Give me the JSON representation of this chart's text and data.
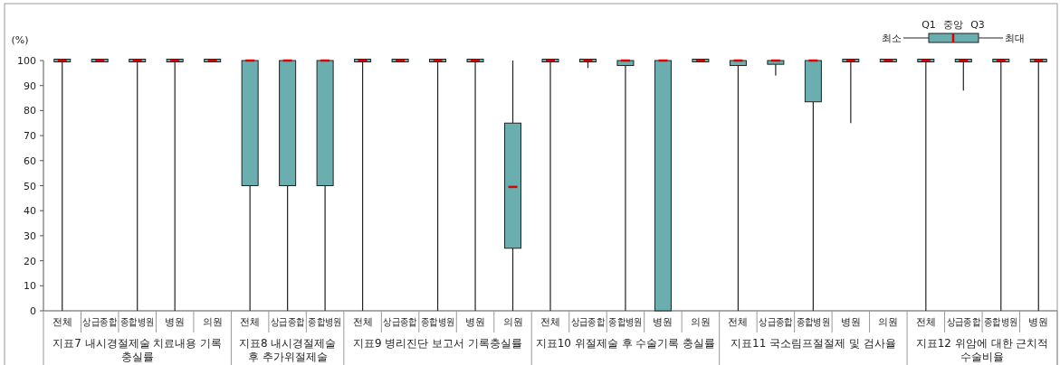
{
  "chart_data": {
    "type": "box",
    "ylabel": "(%)",
    "ylim": [
      0,
      100
    ],
    "yticks": [
      0,
      10,
      20,
      30,
      40,
      50,
      60,
      70,
      80,
      90,
      100
    ],
    "categories": [
      "전체",
      "상급종합",
      "종합병원",
      "병원",
      "의원",
      "전체",
      "상급종합",
      "종합병원",
      "전체",
      "상급종합",
      "종합병원",
      "병원",
      "의원",
      "전체",
      "상급종합",
      "종합병원",
      "병원",
      "의원",
      "전체",
      "상급종합",
      "종합병원",
      "병원",
      "의원",
      "전체",
      "상급종합",
      "종합병원",
      "병원"
    ],
    "series": [
      {
        "color": "#6aaeb0",
        "boxes": [
          {
            "low": 0,
            "q1": 100,
            "median": 100,
            "q3": 100,
            "high": 100
          },
          {
            "low": 100,
            "q1": 100,
            "median": 100,
            "q3": 100,
            "high": 100
          },
          {
            "low": 0,
            "q1": 100,
            "median": 100,
            "q3": 100,
            "high": 100
          },
          {
            "low": 0,
            "q1": 100,
            "median": 100,
            "q3": 100,
            "high": 100
          },
          {
            "low": 100,
            "q1": 100,
            "median": 100,
            "q3": 100,
            "high": 100
          },
          {
            "low": 0,
            "q1": 50,
            "median": 100,
            "q3": 100,
            "high": 100
          },
          {
            "low": 0,
            "q1": 50,
            "median": 100,
            "q3": 100,
            "high": 100
          },
          {
            "low": 0,
            "q1": 50,
            "median": 100,
            "q3": 100,
            "high": 100
          },
          {
            "low": 0,
            "q1": 100,
            "median": 100,
            "q3": 100,
            "high": 100
          },
          {
            "low": 100,
            "q1": 100,
            "median": 100,
            "q3": 100,
            "high": 100
          },
          {
            "low": 0,
            "q1": 100,
            "median": 100,
            "q3": 100,
            "high": 100
          },
          {
            "low": 0,
            "q1": 100,
            "median": 100,
            "q3": 100,
            "high": 100
          },
          {
            "low": 0,
            "q1": 25,
            "median": 49.5,
            "q3": 75,
            "high": 100
          },
          {
            "low": 0,
            "q1": 100,
            "median": 100,
            "q3": 100,
            "high": 100
          },
          {
            "low": 97,
            "q1": 100,
            "median": 100,
            "q3": 100,
            "high": 100
          },
          {
            "low": 0,
            "q1": 98,
            "median": 100,
            "q3": 100,
            "high": 100
          },
          {
            "low": 0,
            "q1": 0,
            "median": 100,
            "q3": 100,
            "high": 100
          },
          {
            "low": 100,
            "q1": 100,
            "median": 100,
            "q3": 100,
            "high": 100
          },
          {
            "low": 0,
            "q1": 98,
            "median": 100,
            "q3": 100,
            "high": 100
          },
          {
            "low": 94,
            "q1": 98.5,
            "median": 100,
            "q3": 100,
            "high": 100
          },
          {
            "low": 0,
            "q1": 83.5,
            "median": 100,
            "q3": 100,
            "high": 100
          },
          {
            "low": 75,
            "q1": 100,
            "median": 100,
            "q3": 100,
            "high": 100
          },
          {
            "low": 100,
            "q1": 100,
            "median": 100,
            "q3": 100,
            "high": 100
          },
          {
            "low": 0,
            "q1": 100,
            "median": 100,
            "q3": 100,
            "high": 100
          },
          {
            "low": 88,
            "q1": 100,
            "median": 100,
            "q3": 100,
            "high": 100
          },
          {
            "low": 0,
            "q1": 100,
            "median": 100,
            "q3": 100,
            "high": 100
          },
          {
            "low": 0,
            "q1": 100,
            "median": 100,
            "q3": 100,
            "high": 100
          }
        ]
      }
    ],
    "annotations": [
      "지표7 내시경절제술 치료내용 기록 충실률",
      "지표8 내시경절제술 후 추가위절제술 실시율",
      "지표9 병리진단 보고서 기록충실률",
      "지표10 위절제술 후 수술기록 충실률",
      "지표11 국소림프절절제 및 검사율",
      "지표12 위암에 대한 근치적 수술비율",
      "최소",
      "Q1",
      "중앙",
      "Q3",
      "최대"
    ]
  }
}
